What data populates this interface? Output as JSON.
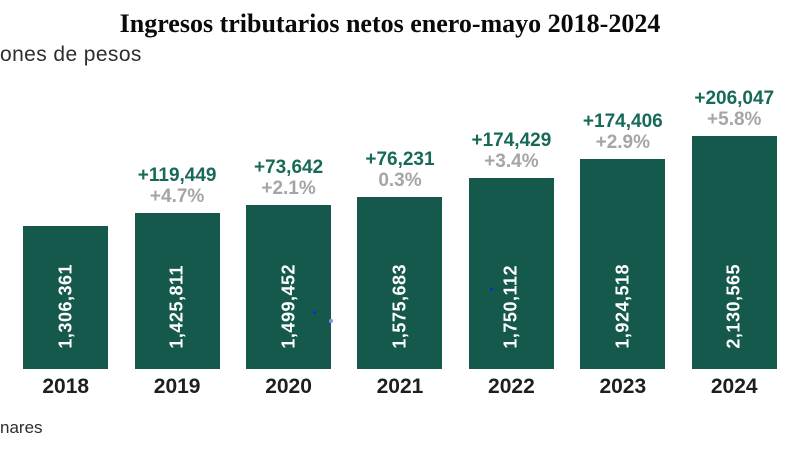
{
  "title": "Ingresos tributarios netos enero-mayo 2018-2024",
  "subtitle_clipped": "ones de pesos",
  "footnote_clipped": "nares",
  "colors": {
    "bar": "#15594C",
    "delta_green": "#176A58",
    "pct_gray": "#A5A5A5",
    "bar_value_text": "#FFFFFF",
    "artifact_blue": "#2121DE"
  },
  "chart_data": {
    "type": "bar",
    "title": "Ingresos tributarios netos enero-mayo 2018-2024",
    "units_label_clipped": "ones de pesos",
    "footnote_visible": "nares",
    "categories": [
      "2018",
      "2019",
      "2020",
      "2021",
      "2022",
      "2023",
      "2024"
    ],
    "values": [
      1306361,
      1425811,
      1499452,
      1575683,
      1750112,
      1924518,
      2130565
    ],
    "ylim": [
      0,
      2130565
    ],
    "grid": false,
    "legend": false,
    "bars": [
      {
        "year": "2018",
        "value": 1306361,
        "value_label": "1,306,361",
        "delta": "",
        "pct": ""
      },
      {
        "year": "2019",
        "value": 1425811,
        "value_label": "1,425,811",
        "delta": "+119,449",
        "pct": "+4.7%"
      },
      {
        "year": "2020",
        "value": 1499452,
        "value_label": "1,499,452",
        "delta": "+73,642",
        "pct": "+2.1%"
      },
      {
        "year": "2021",
        "value": 1575683,
        "value_label": "1,575,683",
        "delta": "+76,231",
        "pct": "0.3%"
      },
      {
        "year": "2022",
        "value": 1750112,
        "value_label": "1,750,112",
        "delta": "+174,429",
        "pct": "+3.4%"
      },
      {
        "year": "2023",
        "value": 1924518,
        "value_label": "1,924,518",
        "delta": "+174,406",
        "pct": "+2.9%"
      },
      {
        "year": "2024",
        "value": 2130565,
        "value_label": "2,130,565",
        "delta": "+206,047",
        "pct": "+5.8%"
      }
    ]
  }
}
